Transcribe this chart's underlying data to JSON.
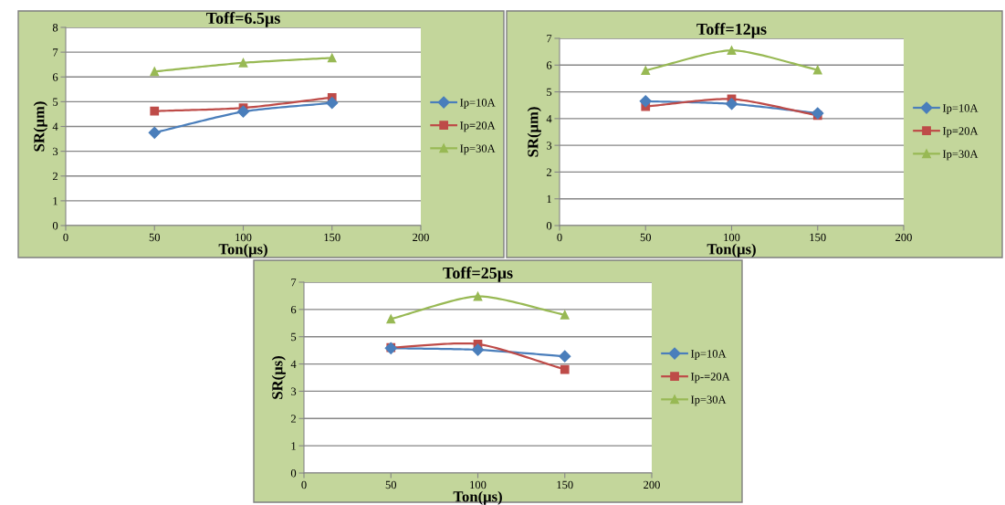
{
  "chart_data": [
    {
      "type": "line",
      "title": "Toff=6.5μs",
      "xlabel": "Ton(μs)",
      "ylabel": "SR(μm)",
      "xlim": [
        0,
        200
      ],
      "xticks": [
        0,
        50,
        100,
        150,
        200
      ],
      "ylim": [
        0,
        8
      ],
      "yticks": [
        0,
        1,
        2,
        3,
        4,
        5,
        6,
        7,
        8
      ],
      "grid": "y",
      "legend": "right",
      "x": [
        50,
        100,
        150
      ],
      "series": [
        {
          "name": "Ip=10A",
          "color": "#4a7ebb",
          "marker": "diamond",
          "values": [
            3.75,
            4.6,
            4.95
          ]
        },
        {
          "name": "Ip=20A",
          "color": "#be4b48",
          "marker": "square",
          "values": [
            4.62,
            4.75,
            5.17
          ]
        },
        {
          "name": "Ip=30A",
          "color": "#98b954",
          "marker": "triangle",
          "values": [
            6.22,
            6.57,
            6.77
          ]
        }
      ]
    },
    {
      "type": "line",
      "title": "Toff=12μs",
      "xlabel": "Ton(μs)",
      "ylabel": "SR(μm)",
      "xlim": [
        0,
        200
      ],
      "xticks": [
        0,
        50,
        100,
        150,
        200
      ],
      "ylim": [
        0,
        7
      ],
      "yticks": [
        0,
        1,
        2,
        3,
        4,
        5,
        6,
        7
      ],
      "grid": "y",
      "legend": "right",
      "x": [
        50,
        100,
        150
      ],
      "series": [
        {
          "name": "Ip=10A",
          "color": "#4a7ebb",
          "marker": "diamond",
          "values": [
            4.65,
            4.55,
            4.2
          ]
        },
        {
          "name": "Ip=20A",
          "color": "#be4b48",
          "marker": "square",
          "values": [
            4.45,
            4.73,
            4.12
          ]
        },
        {
          "name": "Ip=30A",
          "color": "#98b954",
          "marker": "triangle",
          "values": [
            5.8,
            6.55,
            5.82
          ]
        }
      ]
    },
    {
      "type": "line",
      "title": "Toff=25μs",
      "xlabel": "Ton(μs)",
      "ylabel": "SR(μs)",
      "xlim": [
        0,
        200
      ],
      "xticks": [
        0,
        50,
        100,
        150,
        200
      ],
      "ylim": [
        0,
        7
      ],
      "yticks": [
        0,
        1,
        2,
        3,
        4,
        5,
        6,
        7
      ],
      "grid": "y",
      "legend": "right",
      "x": [
        50,
        100,
        150
      ],
      "series": [
        {
          "name": "Ip=10A",
          "color": "#4a7ebb",
          "marker": "diamond",
          "values": [
            4.58,
            4.52,
            4.28
          ]
        },
        {
          "name": "Ip-=20A",
          "color": "#be4b48",
          "marker": "square",
          "values": [
            4.6,
            4.73,
            3.8
          ]
        },
        {
          "name": "Ip=30A",
          "color": "#98b954",
          "marker": "triangle",
          "values": [
            5.65,
            6.48,
            5.8
          ]
        }
      ]
    }
  ]
}
